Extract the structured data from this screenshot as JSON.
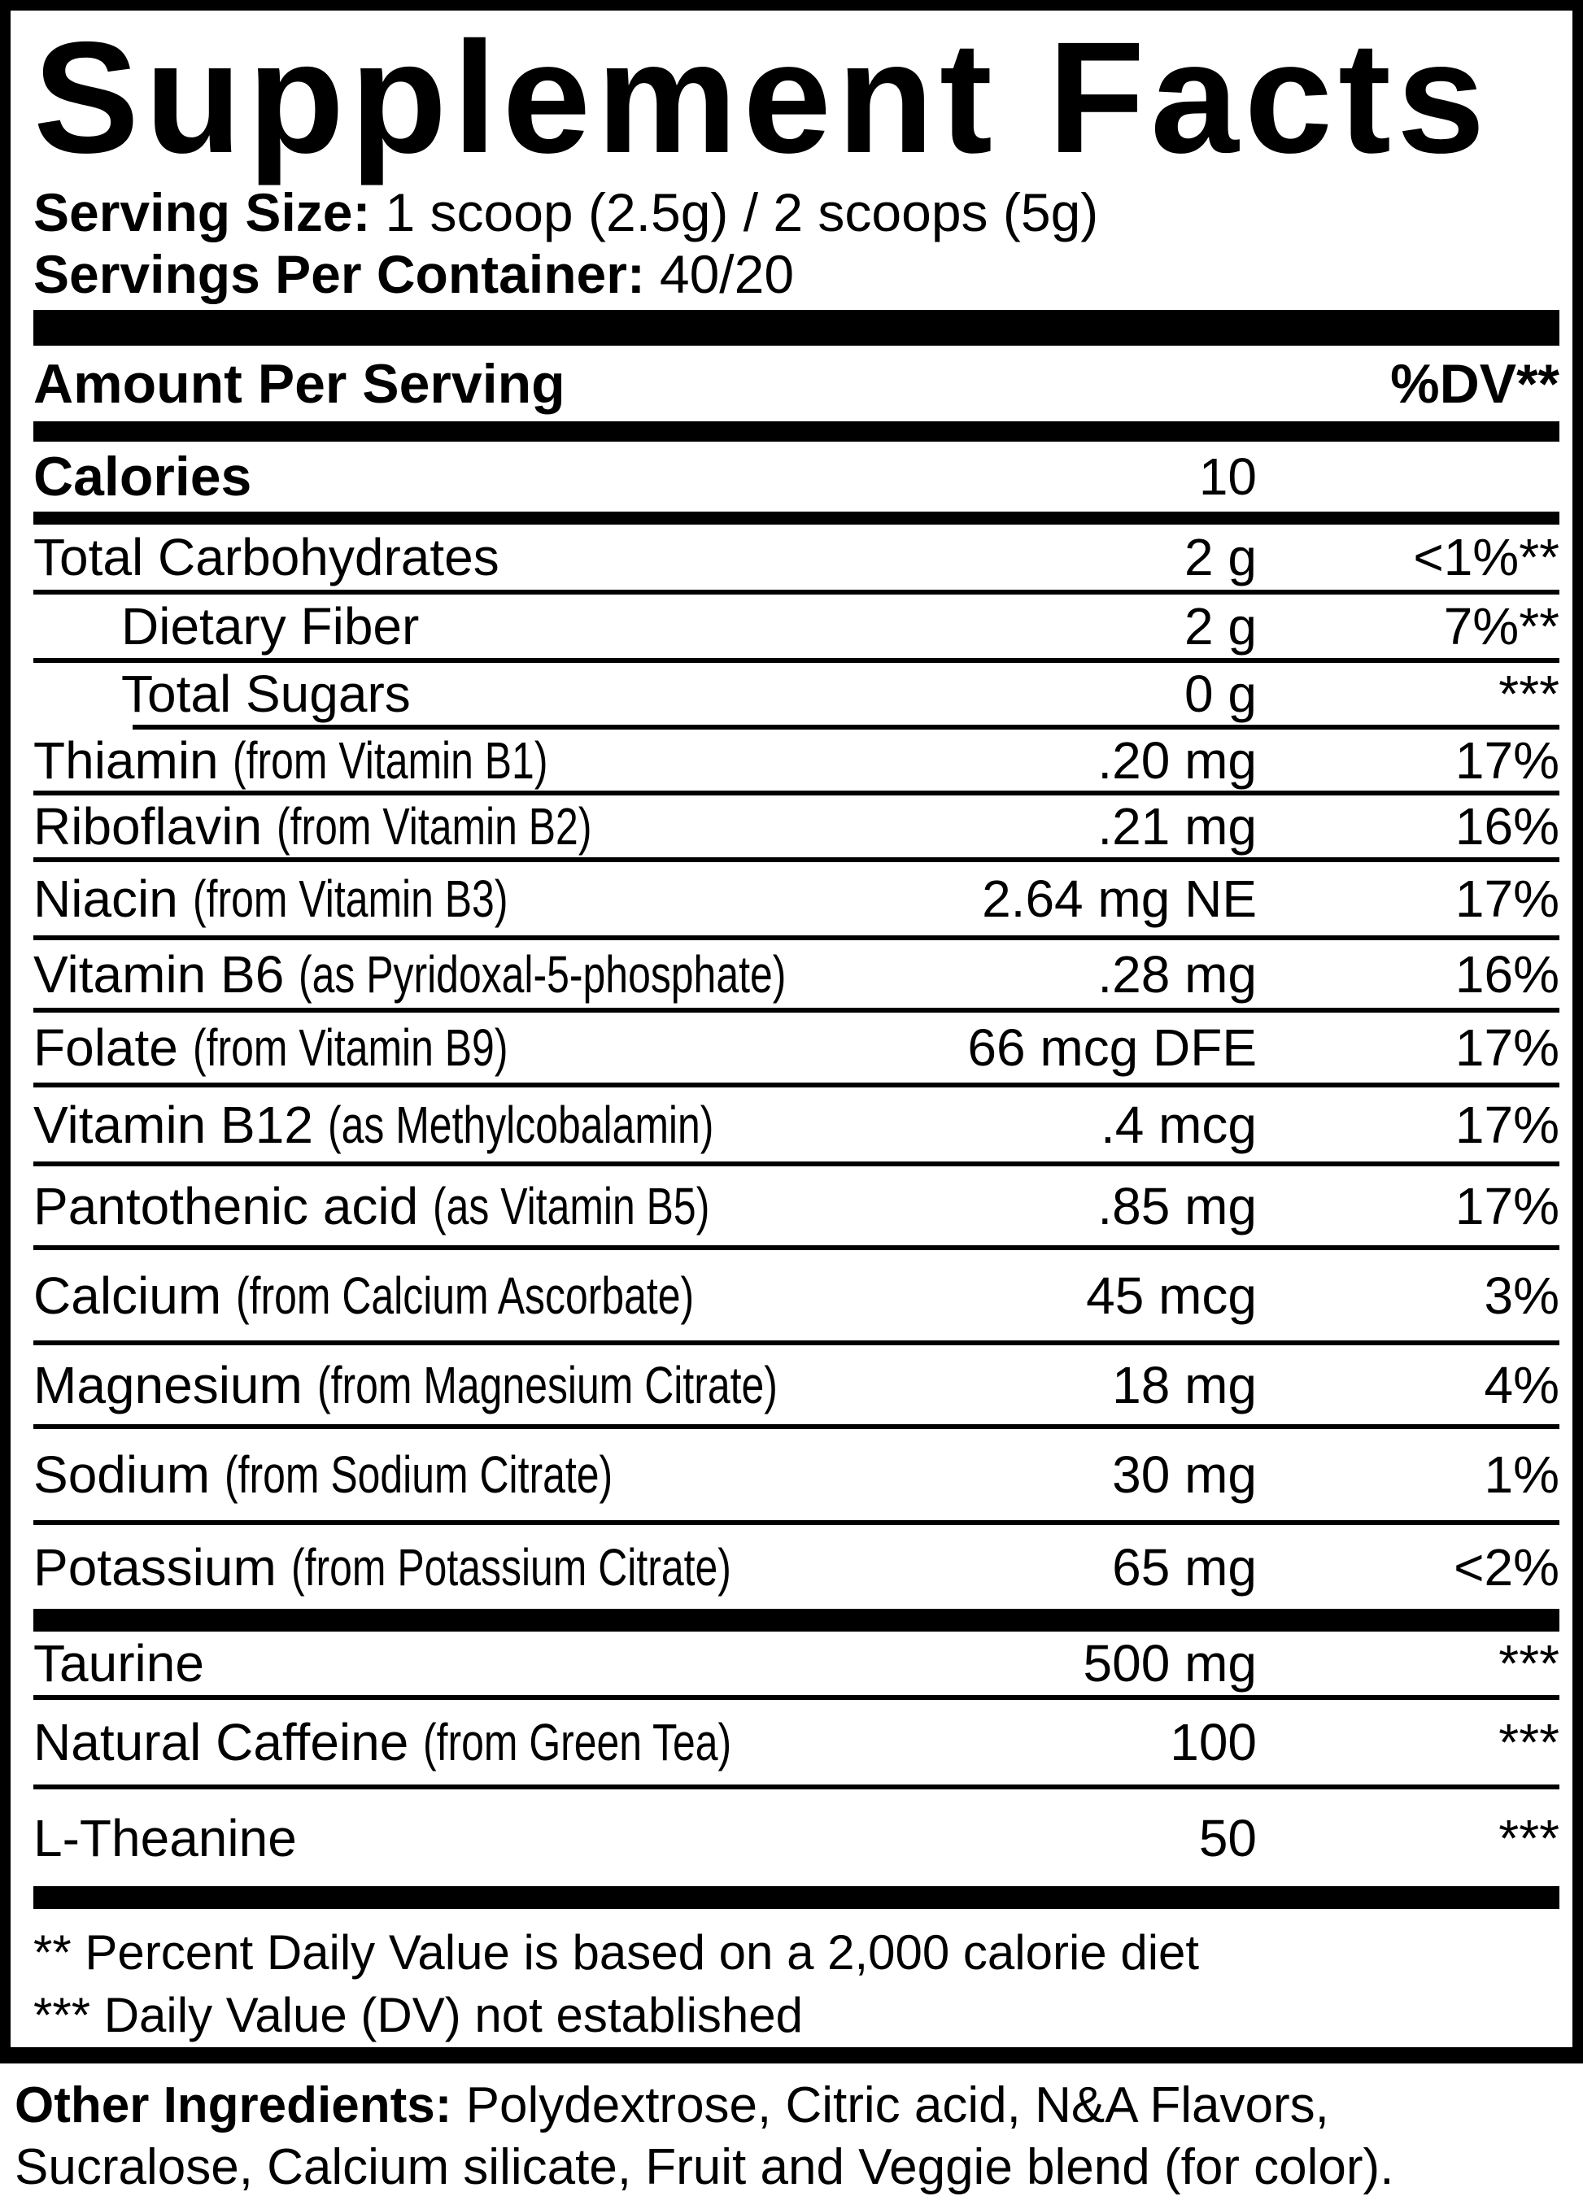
{
  "panel": {
    "title": "Supplement Facts",
    "serving_size_label": "Serving Size:",
    "serving_size_value": "1 scoop (2.5g) / 2 scoops (5g)",
    "servings_label": "Servings Per Container:",
    "servings_value": "40/20",
    "header": {
      "amount_label": "Amount Per Serving",
      "dv_label": "%DV**"
    },
    "calories": {
      "label": "Calories",
      "value": "10"
    },
    "nutrients": [
      {
        "name": "Total Carbohydrates",
        "paren": "",
        "amount": "2 g",
        "dv": "<1%**",
        "indent": false
      },
      {
        "name": "Dietary Fiber",
        "paren": "",
        "amount": "2 g",
        "dv": "7%**",
        "indent": true
      },
      {
        "name": "Total Sugars",
        "paren": "",
        "amount": "0 g",
        "dv": "***",
        "indent": true
      },
      {
        "name": "Thiamin",
        "paren": "(from Vitamin B1)",
        "amount": ".20 mg",
        "dv": "17%",
        "indent": false
      },
      {
        "name": "Riboflavin",
        "paren": "(from Vitamin B2)",
        "amount": ".21 mg",
        "dv": "16%",
        "indent": false
      },
      {
        "name": "Niacin",
        "paren": "(from Vitamin B3)",
        "amount": "2.64 mg NE",
        "dv": "17%",
        "indent": false
      },
      {
        "name": "Vitamin B6",
        "paren": "(as Pyridoxal-5-phosphate)",
        "amount": ".28 mg",
        "dv": "16%",
        "indent": false
      },
      {
        "name": "Folate",
        "paren": "(from Vitamin B9)",
        "amount": "66 mcg DFE",
        "dv": "17%",
        "indent": false
      },
      {
        "name": "Vitamin B12",
        "paren": "(as Methylcobalamin)",
        "amount": ".4 mcg",
        "dv": "17%",
        "indent": false
      },
      {
        "name": "Pantothenic acid",
        "paren": "(as Vitamin B5)",
        "amount": ".85 mg",
        "dv": "17%",
        "indent": false
      },
      {
        "name": "Calcium",
        "paren": "(from Calcium Ascorbate)",
        "amount": "45 mcg",
        "dv": "3%",
        "indent": false
      },
      {
        "name": "Magnesium",
        "paren": "(from Magnesium Citrate)",
        "amount": "18 mg",
        "dv": "4%",
        "indent": false
      },
      {
        "name": "Sodium",
        "paren": "(from Sodium Citrate)",
        "amount": "30 mg",
        "dv": "1%",
        "indent": false
      },
      {
        "name": "Potassium",
        "paren": "(from Potassium Citrate)",
        "amount": "65 mg",
        "dv": "<2%",
        "indent": false
      }
    ],
    "actives": [
      {
        "name": "Taurine",
        "paren": "",
        "amount": "500 mg",
        "dv": "***",
        "indent": false
      },
      {
        "name": "Natural Caffeine",
        "paren": "(from Green Tea)",
        "amount": "100",
        "dv": "***",
        "indent": false
      },
      {
        "name": "L-Theanine",
        "paren": "",
        "amount": "50",
        "dv": "***",
        "indent": false
      }
    ],
    "footnotes": [
      "** Percent Daily Value is based on a 2,000 calorie diet",
      "*** Daily Value (DV) not established"
    ]
  },
  "other_ingredients": {
    "label": "Other Ingredients:",
    "text": "Polydextrose, Citric acid, N&A Flavors, Sucralose, Calcium silicate, Fruit and Veggie blend (for color)."
  }
}
